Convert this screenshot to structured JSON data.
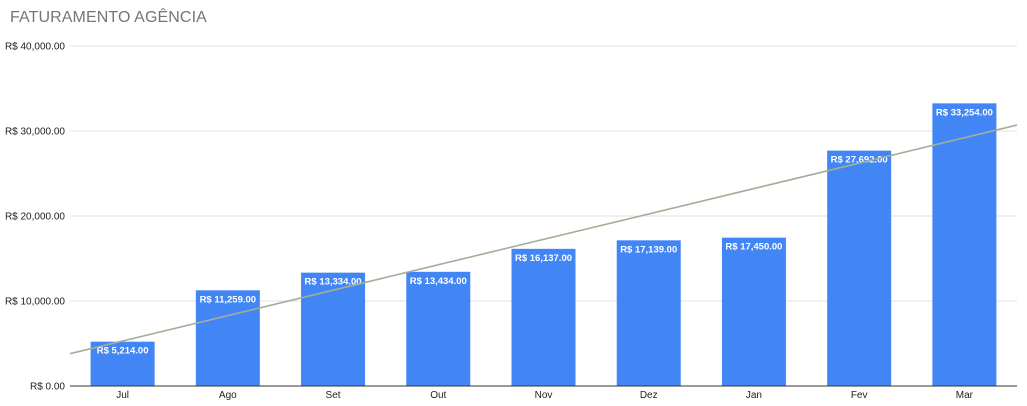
{
  "chart_data": {
    "type": "bar",
    "title": "FATURAMENTO AGÊNCIA",
    "categories": [
      "Jul",
      "Ago",
      "Set",
      "Out",
      "Nov",
      "Dez",
      "Jan",
      "Fev",
      "Mar"
    ],
    "values": [
      5214,
      11259,
      13334,
      13434,
      16137,
      17139,
      17450,
      27692,
      33254
    ],
    "data_labels": [
      "R$ 5,214.00",
      "R$ 11,259.00",
      "R$ 13,334.00",
      "R$ 13,434.00",
      "R$ 16,137.00",
      "R$ 17,139.00",
      "R$ 17,450.00",
      "R$ 27,692.00",
      "R$ 33,254.00"
    ],
    "y_ticks": [
      0,
      10000,
      20000,
      30000,
      40000
    ],
    "y_tick_labels": [
      "R$ 0.00",
      "R$ 10,000.00",
      "R$ 20,000.00",
      "R$ 30,000.00",
      "R$ 40,000.00"
    ],
    "ylim": [
      0,
      40000
    ],
    "xlabel": "",
    "ylabel": "",
    "grid": true,
    "legend": "none",
    "trendline": {
      "type": "linear",
      "start_value": 3800,
      "end_value": 30700
    },
    "colors": {
      "bar": "#4285f4",
      "trendline": "#a3ae98",
      "grid": "#e0e0e0",
      "axis": "#333333",
      "title": "#757575"
    }
  }
}
